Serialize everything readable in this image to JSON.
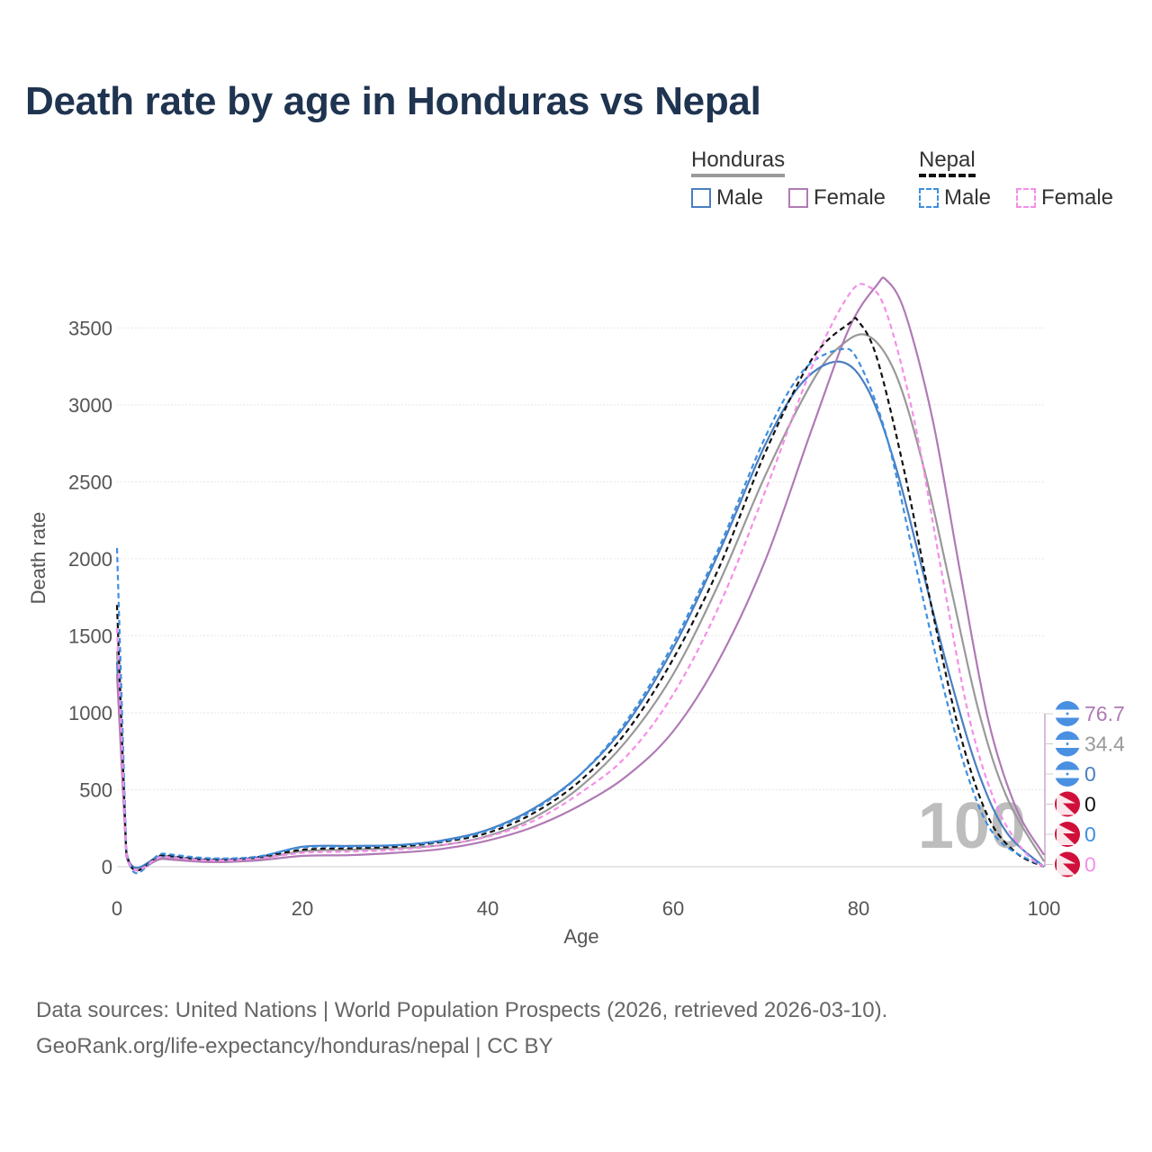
{
  "title": "Death rate by age in Honduras vs Nepal",
  "legend": {
    "groups": [
      {
        "name": "Honduras",
        "color": "#999999",
        "dash": false
      },
      {
        "name": "Nepal",
        "color": "#111111",
        "dash": true
      }
    ],
    "items": [
      {
        "label": "Male",
        "color": "#4a7fc1",
        "dash": false
      },
      {
        "label": "Female",
        "color": "#b07ab5",
        "dash": false
      },
      {
        "label": "Male",
        "color": "#3d8fe0",
        "dash": true
      },
      {
        "label": "Female",
        "color": "#f58ee8",
        "dash": true
      }
    ]
  },
  "source": {
    "line1": "Data sources: United Nations | World Population Prospects (2026, retrieved 2026-03-10).",
    "line2": "GeoRank.org/life-expectancy/honduras/nepal | CC BY"
  },
  "chart_data": {
    "type": "line",
    "title": "Death rate by age in Honduras vs Nepal",
    "xlabel": "Age",
    "ylabel": "Death rate",
    "xlim": [
      0,
      100
    ],
    "ylim": [
      0,
      3800
    ],
    "xticks": [
      0,
      20,
      40,
      60,
      80,
      100
    ],
    "yticks": [
      0,
      500,
      1000,
      1500,
      2000,
      2500,
      3000,
      3500
    ],
    "grid": true,
    "watermark": "100",
    "series": [
      {
        "name": "Honduras total",
        "color": "#999999",
        "dash": false,
        "x": [
          0,
          1,
          5,
          10,
          15,
          20,
          25,
          30,
          35,
          40,
          45,
          50,
          55,
          60,
          65,
          70,
          75,
          78,
          81,
          84,
          87,
          90,
          93,
          96,
          100
        ],
        "y": [
          1400,
          80,
          60,
          38,
          50,
          100,
          110,
          120,
          140,
          200,
          320,
          520,
          820,
          1250,
          1850,
          2550,
          3150,
          3380,
          3450,
          3200,
          2600,
          1800,
          1000,
          450,
          34.4
        ]
      },
      {
        "name": "Honduras male",
        "color": "#4a7fc1",
        "dash": false,
        "x": [
          0,
          1,
          5,
          10,
          15,
          20,
          25,
          30,
          35,
          40,
          45,
          50,
          55,
          60,
          65,
          70,
          74,
          78,
          81,
          84,
          87,
          90,
          93,
          96,
          100
        ],
        "y": [
          1330,
          90,
          70,
          45,
          60,
          130,
          135,
          140,
          170,
          240,
          380,
          600,
          930,
          1420,
          2050,
          2750,
          3150,
          3280,
          3100,
          2600,
          1900,
          1200,
          600,
          220,
          0
        ]
      },
      {
        "name": "Honduras female",
        "color": "#b07ab5",
        "dash": false,
        "x": [
          0,
          1,
          5,
          10,
          15,
          20,
          25,
          30,
          35,
          40,
          45,
          50,
          55,
          60,
          65,
          70,
          75,
          79,
          82,
          83,
          85,
          88,
          91,
          94,
          97,
          100
        ],
        "y": [
          1250,
          70,
          50,
          30,
          40,
          70,
          75,
          90,
          115,
          170,
          260,
          400,
          590,
          880,
          1350,
          2000,
          2850,
          3500,
          3780,
          3810,
          3600,
          2900,
          1900,
          950,
          380,
          76.7
        ]
      },
      {
        "name": "Nepal total",
        "color": "#111111",
        "dash": true,
        "x": [
          0,
          1,
          5,
          10,
          15,
          20,
          25,
          30,
          35,
          40,
          45,
          50,
          55,
          60,
          65,
          70,
          75,
          79,
          80,
          82,
          85,
          88,
          91,
          94,
          97,
          100
        ],
        "y": [
          1700,
          100,
          75,
          48,
          60,
          110,
          120,
          130,
          160,
          220,
          350,
          560,
          880,
          1350,
          1950,
          2700,
          3300,
          3530,
          3540,
          3300,
          2550,
          1650,
          850,
          320,
          90,
          0
        ]
      },
      {
        "name": "Nepal male",
        "color": "#3d8fe0",
        "dash": true,
        "x": [
          0,
          1,
          5,
          10,
          15,
          20,
          25,
          30,
          35,
          40,
          45,
          50,
          55,
          60,
          65,
          70,
          74,
          78,
          80,
          83,
          86,
          89,
          92,
          95,
          100
        ],
        "y": [
          2070,
          110,
          85,
          55,
          65,
          125,
          130,
          140,
          165,
          235,
          370,
          600,
          950,
          1450,
          2080,
          2800,
          3220,
          3360,
          3280,
          2800,
          2000,
          1200,
          550,
          180,
          0
        ]
      },
      {
        "name": "Nepal female",
        "color": "#f58ee8",
        "dash": true,
        "x": [
          0,
          1,
          5,
          10,
          15,
          20,
          25,
          30,
          35,
          40,
          45,
          50,
          55,
          60,
          65,
          70,
          75,
          79,
          81,
          83,
          86,
          89,
          92,
          95,
          98,
          100
        ],
        "y": [
          1550,
          90,
          65,
          40,
          52,
          90,
          98,
          110,
          140,
          195,
          300,
          480,
          720,
          1120,
          1700,
          2450,
          3250,
          3720,
          3770,
          3600,
          2900,
          1900,
          950,
          380,
          90,
          0
        ]
      }
    ],
    "end_labels": [
      {
        "value": "76.7",
        "color": "#b07ab5",
        "flag": "Honduras"
      },
      {
        "value": "34.4",
        "color": "#999999",
        "flag": "Honduras"
      },
      {
        "value": "0",
        "color": "#4a7fc1",
        "flag": "Honduras"
      },
      {
        "value": "0",
        "color": "#111111",
        "flag": "Nepal"
      },
      {
        "value": "0",
        "color": "#3d8fe0",
        "flag": "Nepal"
      },
      {
        "value": "0",
        "color": "#f58ee8",
        "flag": "Nepal"
      }
    ]
  }
}
